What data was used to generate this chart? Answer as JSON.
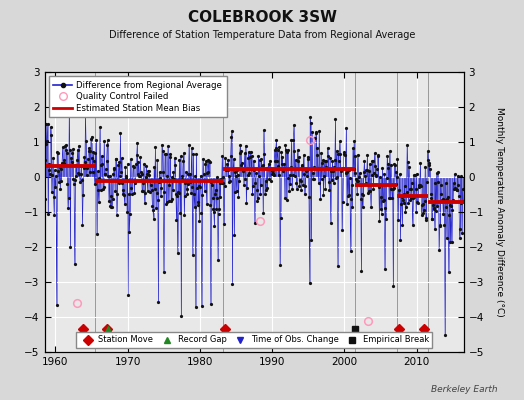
{
  "title": "COLEBROOK 3SW",
  "subtitle": "Difference of Station Temperature Data from Regional Average",
  "ylabel": "Monthly Temperature Anomaly Difference (°C)",
  "xlabel_credit": "Berkeley Earth",
  "ylim": [
    -5,
    3
  ],
  "xlim": [
    1958.5,
    2016.5
  ],
  "yticks": [
    -5,
    -4,
    -3,
    -2,
    -1,
    0,
    1,
    2,
    3
  ],
  "xticks": [
    1960,
    1970,
    1980,
    1990,
    2000,
    2010
  ],
  "bg_color": "#d8d8d8",
  "plot_bg_color": "#e8e8e8",
  "grid_color": "#ffffff",
  "line_color": "#2222cc",
  "dot_color": "#111111",
  "bias_color": "#cc0000",
  "qc_color": "#ff99bb",
  "segment_biases": [
    {
      "start": 1958.5,
      "end": 1965.5,
      "bias": 0.32
    },
    {
      "start": 1965.5,
      "end": 1983.2,
      "bias": -0.12
    },
    {
      "start": 1983.2,
      "end": 2001.5,
      "bias": 0.22
    },
    {
      "start": 2001.5,
      "end": 2007.3,
      "bias": -0.22
    },
    {
      "start": 2007.3,
      "end": 2011.5,
      "bias": -0.55
    },
    {
      "start": 2011.5,
      "end": 2016.5,
      "bias": -0.72
    }
  ],
  "station_moves": [
    1963.8,
    1967.2,
    1983.5,
    2007.5,
    2011.0
  ],
  "record_gaps": [
    1967.3
  ],
  "obs_changes": [],
  "empirical_breaks": [
    2001.5
  ],
  "qc_failed_points_rel": [
    [
      1963.0,
      -3.6
    ],
    [
      1988.3,
      -1.25
    ],
    [
      1995.2,
      1.05
    ],
    [
      2003.2,
      -4.1
    ]
  ],
  "break_line_times": [
    1965.5,
    1983.2,
    2001.5,
    2007.3,
    2011.5
  ],
  "seed": 17
}
